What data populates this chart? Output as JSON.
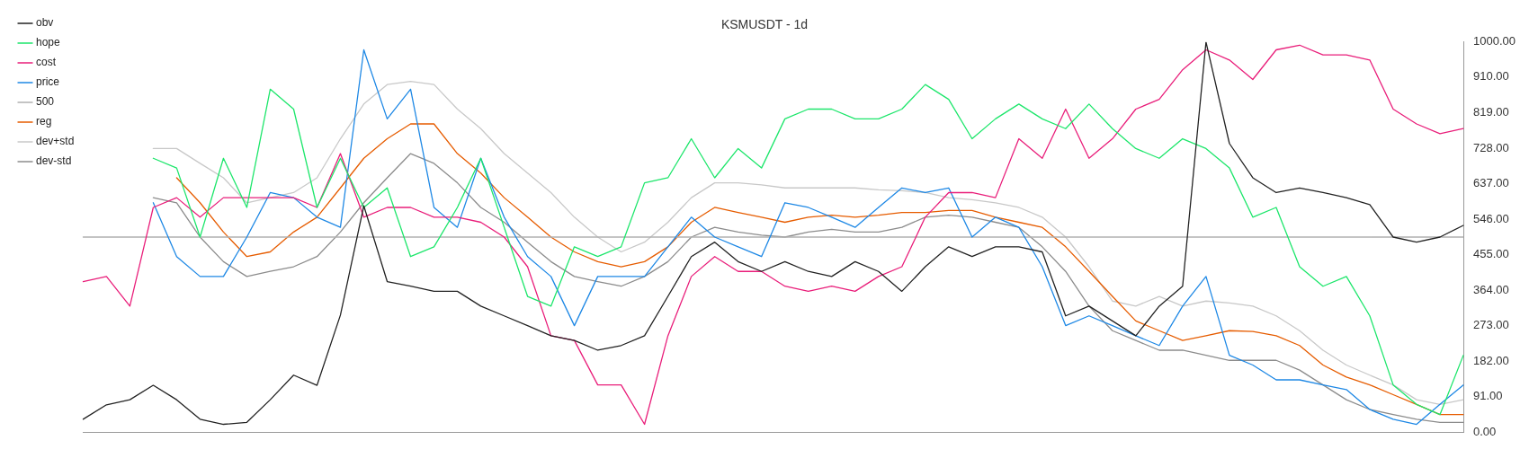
{
  "chart_data": {
    "type": "line",
    "title": "KSMUSDT - 1d",
    "categories": [
      null,
      null,
      null,
      null,
      null,
      null,
      null,
      null,
      null,
      null,
      null,
      null,
      null,
      null,
      null,
      null,
      null,
      null,
      null,
      null,
      null,
      null,
      null,
      null,
      null,
      null,
      null,
      null,
      null,
      null,
      null,
      null,
      null,
      null,
      null,
      null,
      null,
      null,
      null,
      null,
      null,
      null,
      null,
      null,
      null,
      null,
      null,
      null,
      null,
      null,
      null,
      null,
      null,
      null,
      null,
      null,
      null,
      null,
      null,
      null
    ],
    "ylim": [
      0,
      1000
    ],
    "yticks": [
      {
        "value": 0,
        "label": "0.00"
      },
      {
        "value": 91,
        "label": "91.00"
      },
      {
        "value": 182,
        "label": "182.00"
      },
      {
        "value": 273,
        "label": "273.00"
      },
      {
        "value": 364,
        "label": "364.00"
      },
      {
        "value": 455,
        "label": "455.00"
      },
      {
        "value": 546,
        "label": "546.00"
      },
      {
        "value": 637,
        "label": "637.00"
      },
      {
        "value": 728,
        "label": "728.00"
      },
      {
        "value": 819,
        "label": "819.00"
      },
      {
        "value": 910,
        "label": "910.00"
      },
      {
        "value": 1000,
        "label": "1000.00"
      }
    ],
    "tick_labels": "y",
    "grid": false,
    "legend": "top left",
    "marker": "none",
    "line_style": "solid",
    "series": [
      {
        "name": "obv",
        "color": "#222222",
        "values": [
          33,
          70,
          83,
          120,
          83,
          33,
          20,
          25,
          83,
          146,
          120,
          300,
          580,
          386,
          374,
          361,
          361,
          323,
          298,
          273,
          247,
          235,
          210,
          222,
          247,
          348,
          450,
          487,
          437,
          412,
          437,
          412,
          399,
          437,
          412,
          361,
          424,
          475,
          450,
          475,
          475,
          462,
          298,
          323,
          285,
          247,
          323,
          374,
          1000,
          740,
          652,
          614,
          626,
          614,
          601,
          583,
          500,
          487,
          500,
          530
        ]
      },
      {
        "name": "hope",
        "color": "#1de66b",
        "values": [
          null,
          null,
          null,
          702,
          677,
          500,
          702,
          576,
          879,
          828,
          576,
          702,
          576,
          626,
          450,
          475,
          576,
          702,
          525,
          348,
          323,
          475,
          450,
          475,
          639,
          652,
          752,
          652,
          727,
          677,
          803,
          828,
          828,
          803,
          803,
          828,
          891,
          853,
          752,
          803,
          841,
          803,
          778,
          841,
          778,
          727,
          702,
          752,
          727,
          677,
          551,
          576,
          424,
          374,
          399,
          298,
          121,
          71,
          45,
          197
        ]
      },
      {
        "name": "cost",
        "color": "#e91e7a",
        "values": [
          386,
          399,
          323,
          576,
          601,
          551,
          601,
          601,
          601,
          601,
          576,
          714,
          551,
          576,
          576,
          551,
          551,
          538,
          500,
          424,
          247,
          235,
          121,
          121,
          20,
          247,
          399,
          450,
          412,
          412,
          374,
          361,
          374,
          361,
          399,
          424,
          551,
          614,
          614,
          601,
          752,
          702,
          828,
          702,
          752,
          828,
          853,
          929,
          980,
          954,
          904,
          980,
          992,
          967,
          967,
          954,
          828,
          790,
          765,
          778
        ]
      },
      {
        "name": "price",
        "color": "#1e88e5",
        "values": [
          null,
          null,
          null,
          588,
          450,
          399,
          399,
          500,
          614,
          601,
          551,
          525,
          980,
          803,
          879,
          576,
          525,
          702,
          551,
          450,
          399,
          273,
          399,
          399,
          399,
          475,
          551,
          500,
          475,
          450,
          588,
          576,
          551,
          525,
          576,
          626,
          614,
          626,
          500,
          551,
          525,
          424,
          273,
          298,
          273,
          247,
          222,
          323,
          399,
          197,
          172,
          134,
          134,
          121,
          109,
          58,
          33,
          20,
          71,
          121
        ]
      },
      {
        "name": "500",
        "color": "#b0b0b0",
        "values": [
          500,
          500,
          500,
          500,
          500,
          500,
          500,
          500,
          500,
          500,
          500,
          500,
          500,
          500,
          500,
          500,
          500,
          500,
          500,
          500,
          500,
          500,
          500,
          500,
          500,
          500,
          500,
          500,
          500,
          500,
          500,
          500,
          500,
          500,
          500,
          500,
          500,
          500,
          500,
          500,
          500,
          500,
          500,
          500,
          500,
          500,
          500,
          500,
          500,
          500,
          500,
          500,
          500,
          500,
          500,
          500,
          500,
          500,
          500,
          500
        ]
      },
      {
        "name": "reg",
        "color": "#e65c00",
        "values": [
          null,
          null,
          null,
          null,
          652,
          588,
          513,
          450,
          462,
          513,
          551,
          626,
          702,
          752,
          790,
          790,
          714,
          664,
          601,
          551,
          500,
          462,
          437,
          424,
          437,
          475,
          538,
          576,
          563,
          551,
          538,
          551,
          556,
          551,
          556,
          563,
          563,
          568,
          568,
          551,
          538,
          525,
          475,
          412,
          348,
          285,
          260,
          235,
          247,
          260,
          258,
          247,
          222,
          172,
          141,
          121,
          96,
          71,
          45,
          45
        ]
      },
      {
        "name": "dev+std",
        "color": "#c8c8c8",
        "values": [
          null,
          null,
          null,
          727,
          727,
          689,
          652,
          588,
          601,
          614,
          652,
          752,
          841,
          891,
          899,
          891,
          828,
          778,
          714,
          664,
          614,
          551,
          500,
          462,
          487,
          538,
          601,
          639,
          639,
          634,
          626,
          626,
          626,
          626,
          621,
          619,
          614,
          601,
          596,
          588,
          576,
          551,
          500,
          424,
          336,
          323,
          348,
          323,
          336,
          331,
          323,
          298,
          260,
          210,
          172,
          146,
          121,
          83,
          71,
          83
        ]
      },
      {
        "name": "dev-std",
        "color": "#8c8c8c",
        "values": [
          null,
          null,
          null,
          601,
          588,
          500,
          437,
          399,
          412,
          424,
          450,
          513,
          588,
          652,
          714,
          689,
          639,
          576,
          538,
          487,
          437,
          399,
          386,
          374,
          399,
          437,
          500,
          525,
          513,
          505,
          500,
          513,
          520,
          513,
          513,
          525,
          551,
          556,
          551,
          538,
          525,
          475,
          412,
          323,
          260,
          235,
          210,
          210,
          197,
          184,
          184,
          184,
          159,
          121,
          83,
          58,
          45,
          33,
          25,
          25
        ]
      }
    ]
  }
}
